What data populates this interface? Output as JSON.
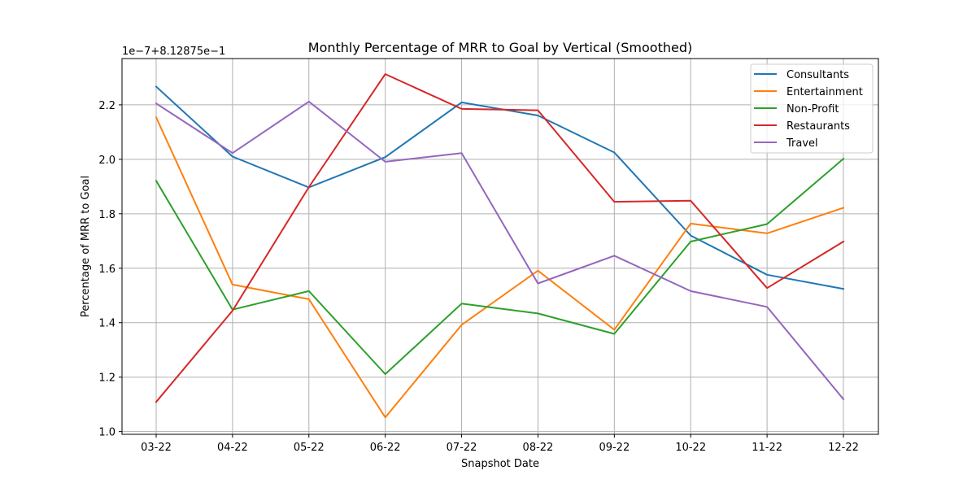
{
  "chart_data": {
    "type": "line",
    "title": "Monthly Percentage of MRR to Goal by Vertical (Smoothed)",
    "xlabel": "Snapshot Date",
    "ylabel": "Percentage of MRR to Goal",
    "y_offset_label": "1e−7+8.12875e−1",
    "categories": [
      "03-22",
      "04-22",
      "05-22",
      "06-22",
      "07-22",
      "08-22",
      "09-22",
      "10-22",
      "11-22",
      "12-22"
    ],
    "y_ticks": [
      "1.0",
      "1.2",
      "1.4",
      "1.6",
      "1.8",
      "2.0",
      "2.2"
    ],
    "y_tick_values": [
      1.0,
      1.2,
      1.4,
      1.6,
      1.8,
      2.0,
      2.2
    ],
    "ylim": [
      0.99,
      2.37
    ],
    "grid": true,
    "legend_position": "top-right",
    "series": [
      {
        "name": "Consultants",
        "color": "#1f77b4",
        "values": [
          2.267,
          2.01,
          1.897,
          2.008,
          2.209,
          2.161,
          2.025,
          1.72,
          1.576,
          1.524
        ]
      },
      {
        "name": "Entertainment",
        "color": "#ff7f0e",
        "values": [
          2.154,
          1.54,
          1.486,
          1.052,
          1.392,
          1.591,
          1.374,
          1.764,
          1.728,
          1.822
        ]
      },
      {
        "name": "Non-Profit",
        "color": "#2ca02c",
        "values": [
          1.921,
          1.448,
          1.516,
          1.211,
          1.47,
          1.434,
          1.359,
          1.698,
          1.762,
          2.002
        ]
      },
      {
        "name": "Restaurants",
        "color": "#d62728",
        "values": [
          1.109,
          1.444,
          1.898,
          2.313,
          2.185,
          2.18,
          1.844,
          1.848,
          1.527,
          1.698
        ]
      },
      {
        "name": "Travel",
        "color": "#9467bd",
        "values": [
          2.205,
          2.023,
          2.212,
          1.991,
          2.023,
          1.544,
          1.646,
          1.516,
          1.458,
          1.119
        ]
      }
    ]
  }
}
